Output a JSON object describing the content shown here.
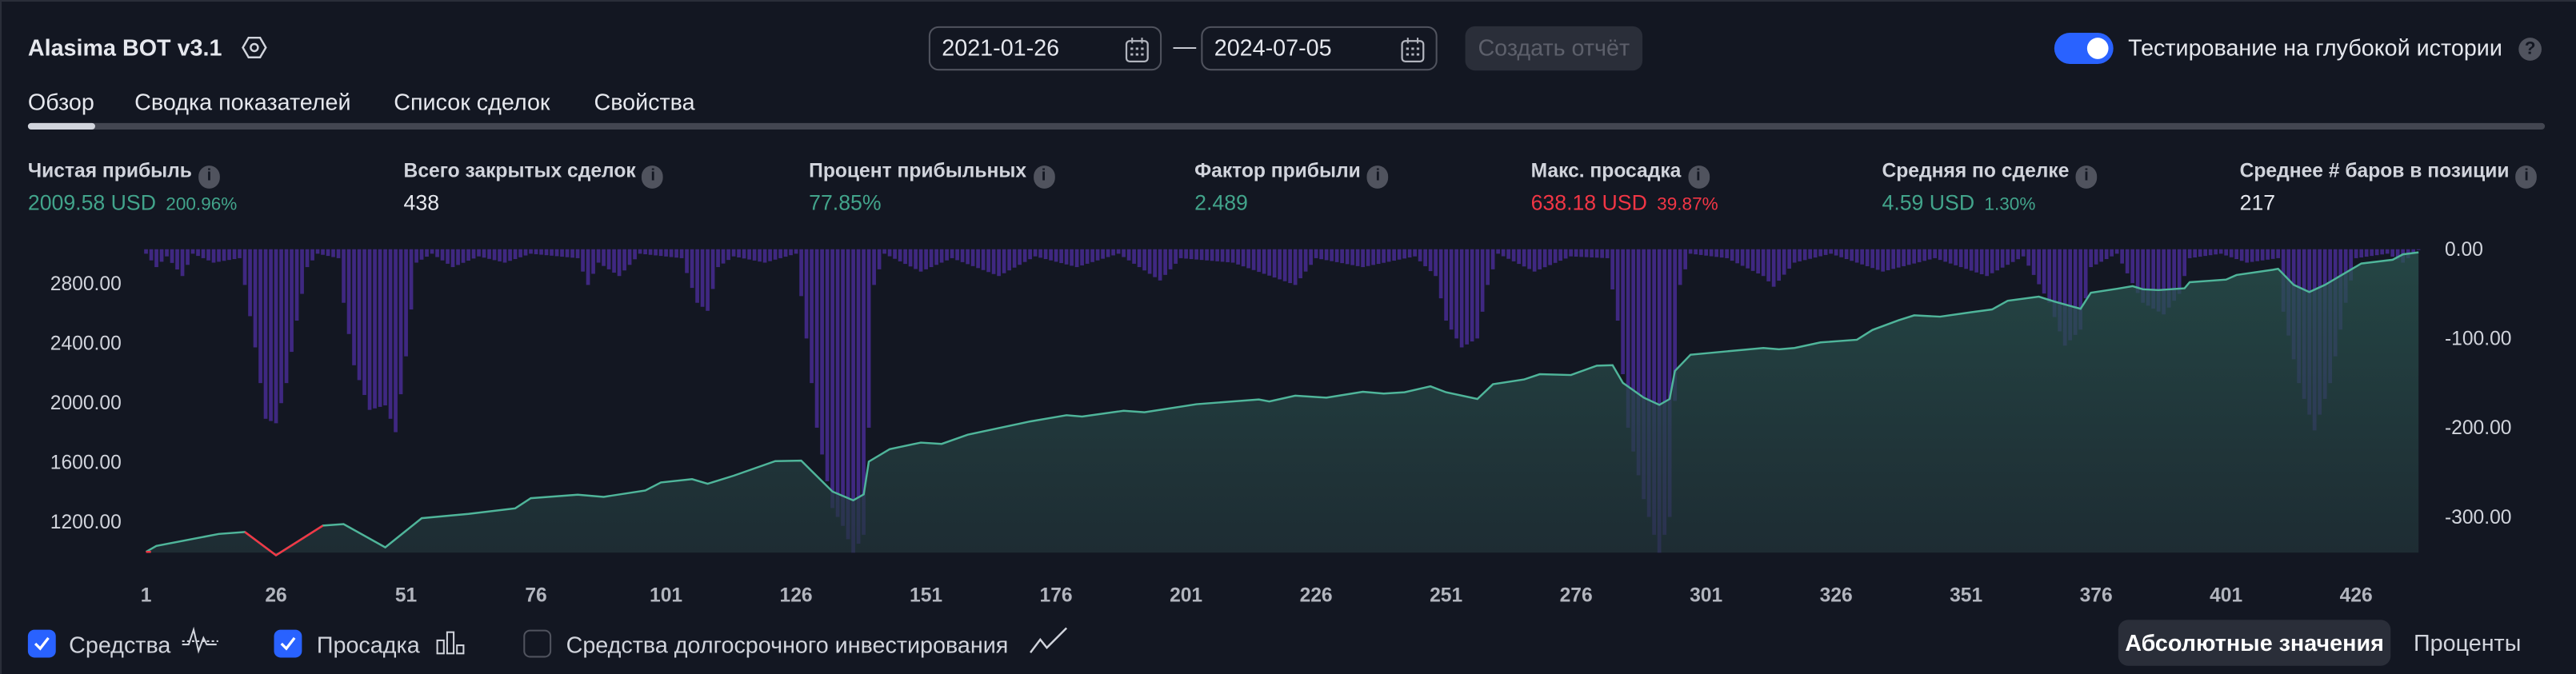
{
  "header": {
    "title": "Alasima BOT v3.1",
    "settings_icon": "hexagon-settings-icon",
    "date_from": "2021-01-26",
    "date_separator": "—",
    "date_to": "2024-07-05",
    "create_report_label": "Создать отчёт",
    "deep_history_toggle": {
      "label": "Тестирование на глубокой истории",
      "on": true,
      "help_icon": "?"
    }
  },
  "tabs": [
    {
      "label": "Обзор",
      "active": true
    },
    {
      "label": "Сводка показателей"
    },
    {
      "label": "Список сделок"
    },
    {
      "label": "Свойства"
    }
  ],
  "info_icon": "i",
  "metrics": [
    {
      "label": "Чистая прибыль",
      "value": "2009.58 USD",
      "pct": "200.96%",
      "color": "#42a48b"
    },
    {
      "label": "Всего закрытых сделок",
      "value": "438"
    },
    {
      "label": "Процент прибыльных",
      "value": "77.85%",
      "color": "#42a48b"
    },
    {
      "label": "Фактор прибыли",
      "value": "2.489",
      "color": "#42a48b"
    },
    {
      "label": "Макс. просадка",
      "value": "638.18 USD",
      "pct": "39.87%",
      "color": "#f23645"
    },
    {
      "label": "Средняя по сделке",
      "value": "4.59 USD",
      "pct": "1.30%",
      "color": "#42a48b"
    },
    {
      "label": "Среднее # баров в позиции",
      "value": "217"
    }
  ],
  "chart_data": {
    "type": "area",
    "x_ticks": [
      "1",
      "26",
      "51",
      "76",
      "101",
      "126",
      "151",
      "176",
      "201",
      "226",
      "251",
      "276",
      "301",
      "326",
      "351",
      "376",
      "401",
      "426"
    ],
    "x_range": [
      1,
      438
    ],
    "left_axis": {
      "ticks": [
        "2800.00",
        "2400.00",
        "2000.00",
        "1600.00",
        "1200.00"
      ],
      "tick_values": [
        2800,
        2400,
        2000,
        1600,
        1200
      ],
      "range": [
        995,
        3030
      ]
    },
    "right_axis": {
      "ticks": [
        "0.00",
        "-100.00",
        "-200.00",
        "-300.00"
      ],
      "tick_values": [
        0,
        -100,
        -200,
        -300
      ],
      "range": [
        -340,
        0
      ]
    },
    "equity_baseline": 1000,
    "series": [
      {
        "name": "Средства",
        "color": "#42a48b",
        "below_baseline_color": "#f23645",
        "points": [
          [
            1,
            1000
          ],
          [
            3,
            1040
          ],
          [
            15,
            1120
          ],
          [
            20,
            1134
          ],
          [
            26,
            977
          ],
          [
            35,
            1176
          ],
          [
            39,
            1186
          ],
          [
            47,
            1030
          ],
          [
            54,
            1226
          ],
          [
            63,
            1255
          ],
          [
            72,
            1292
          ],
          [
            75,
            1360
          ],
          [
            84,
            1383
          ],
          [
            89,
            1369
          ],
          [
            97,
            1412
          ],
          [
            100,
            1466
          ],
          [
            106,
            1488
          ],
          [
            109,
            1457
          ],
          [
            114,
            1511
          ],
          [
            122,
            1609
          ],
          [
            127,
            1612
          ],
          [
            133,
            1404
          ],
          [
            137,
            1346
          ],
          [
            139,
            1386
          ],
          [
            140,
            1605
          ],
          [
            144,
            1689
          ],
          [
            150,
            1733
          ],
          [
            154,
            1724
          ],
          [
            159,
            1786
          ],
          [
            171,
            1875
          ],
          [
            178,
            1917
          ],
          [
            181,
            1908
          ],
          [
            189,
            1946
          ],
          [
            193,
            1937
          ],
          [
            203,
            1991
          ],
          [
            215,
            2022
          ],
          [
            217,
            2009
          ],
          [
            222,
            2048
          ],
          [
            228,
            2035
          ],
          [
            235,
            2074
          ],
          [
            239,
            2062
          ],
          [
            243,
            2071
          ],
          [
            248,
            2110
          ],
          [
            251,
            2071
          ],
          [
            257,
            2026
          ],
          [
            260,
            2125
          ],
          [
            266,
            2157
          ],
          [
            269,
            2192
          ],
          [
            275,
            2186
          ],
          [
            280,
            2249
          ],
          [
            283,
            2252
          ],
          [
            285,
            2134
          ],
          [
            289,
            2035
          ],
          [
            292,
            1986
          ],
          [
            294,
            2026
          ],
          [
            295,
            2214
          ],
          [
            298,
            2323
          ],
          [
            312,
            2368
          ],
          [
            315,
            2359
          ],
          [
            318,
            2368
          ],
          [
            323,
            2405
          ],
          [
            330,
            2423
          ],
          [
            333,
            2489
          ],
          [
            338,
            2554
          ],
          [
            341,
            2587
          ],
          [
            346,
            2578
          ],
          [
            352,
            2608
          ],
          [
            356,
            2626
          ],
          [
            359,
            2685
          ],
          [
            365,
            2712
          ],
          [
            368,
            2679
          ],
          [
            373,
            2631
          ],
          [
            375,
            2739
          ],
          [
            380,
            2765
          ],
          [
            383,
            2782
          ],
          [
            385,
            2762
          ],
          [
            388,
            2756
          ],
          [
            393,
            2768
          ],
          [
            394,
            2809
          ],
          [
            401,
            2827
          ],
          [
            403,
            2857
          ],
          [
            410,
            2893
          ],
          [
            411,
            2899
          ],
          [
            414,
            2791
          ],
          [
            417,
            2743
          ],
          [
            420,
            2791
          ],
          [
            427,
            2934
          ],
          [
            433,
            2960
          ],
          [
            435,
            2996
          ],
          [
            438,
            3009.58
          ]
        ]
      },
      {
        "name": "Просадка",
        "color": "#4b2d9a",
        "axis": "right",
        "points": [
          [
            1,
            -5
          ],
          [
            3,
            -20
          ],
          [
            5,
            -8
          ],
          [
            8,
            -30
          ],
          [
            10,
            -5
          ],
          [
            14,
            -15
          ],
          [
            19,
            -10
          ],
          [
            20,
            -40
          ],
          [
            22,
            -110
          ],
          [
            24,
            -190
          ],
          [
            26,
            -195
          ],
          [
            28,
            -150
          ],
          [
            30,
            -80
          ],
          [
            32,
            -20
          ],
          [
            34,
            -5
          ],
          [
            38,
            -10
          ],
          [
            39,
            -60
          ],
          [
            41,
            -130
          ],
          [
            44,
            -180
          ],
          [
            47,
            -175
          ],
          [
            49,
            -205
          ],
          [
            51,
            -120
          ],
          [
            53,
            -15
          ],
          [
            56,
            -5
          ],
          [
            60,
            -20
          ],
          [
            65,
            -8
          ],
          [
            70,
            -15
          ],
          [
            75,
            -5
          ],
          [
            84,
            -10
          ],
          [
            86,
            -40
          ],
          [
            88,
            -15
          ],
          [
            92,
            -30
          ],
          [
            96,
            -5
          ],
          [
            104,
            -10
          ],
          [
            107,
            -60
          ],
          [
            109,
            -69
          ],
          [
            111,
            -20
          ],
          [
            114,
            -8
          ],
          [
            120,
            -15
          ],
          [
            126,
            -5
          ],
          [
            128,
            -100
          ],
          [
            130,
            -200
          ],
          [
            133,
            -290
          ],
          [
            135,
            -310
          ],
          [
            137,
            -340
          ],
          [
            139,
            -320
          ],
          [
            140,
            -200
          ],
          [
            141,
            -40
          ],
          [
            143,
            -5
          ],
          [
            150,
            -25
          ],
          [
            156,
            -10
          ],
          [
            165,
            -30
          ],
          [
            172,
            -8
          ],
          [
            180,
            -20
          ],
          [
            188,
            -5
          ],
          [
            196,
            -35
          ],
          [
            200,
            -10
          ],
          [
            210,
            -15
          ],
          [
            222,
            -40
          ],
          [
            226,
            -10
          ],
          [
            235,
            -20
          ],
          [
            245,
            -8
          ],
          [
            249,
            -30
          ],
          [
            251,
            -80
          ],
          [
            254,
            -110
          ],
          [
            257,
            -100
          ],
          [
            259,
            -40
          ],
          [
            261,
            -5
          ],
          [
            268,
            -25
          ],
          [
            275,
            -8
          ],
          [
            282,
            -10
          ],
          [
            284,
            -80
          ],
          [
            286,
            -200
          ],
          [
            289,
            -280
          ],
          [
            292,
            -340
          ],
          [
            294,
            -300
          ],
          [
            296,
            -40
          ],
          [
            298,
            -5
          ],
          [
            305,
            -10
          ],
          [
            312,
            -30
          ],
          [
            314,
            -42
          ],
          [
            318,
            -15
          ],
          [
            325,
            -5
          ],
          [
            335,
            -25
          ],
          [
            345,
            -10
          ],
          [
            355,
            -30
          ],
          [
            362,
            -8
          ],
          [
            367,
            -60
          ],
          [
            370,
            -108
          ],
          [
            373,
            -90
          ],
          [
            375,
            -20
          ],
          [
            380,
            -5
          ],
          [
            385,
            -60
          ],
          [
            389,
            -73
          ],
          [
            392,
            -50
          ],
          [
            394,
            -10
          ],
          [
            400,
            -5
          ],
          [
            405,
            -15
          ],
          [
            411,
            -10
          ],
          [
            412,
            -70
          ],
          [
            415,
            -150
          ],
          [
            418,
            -203
          ],
          [
            421,
            -150
          ],
          [
            424,
            -60
          ],
          [
            426,
            -10
          ],
          [
            432,
            -5
          ],
          [
            435,
            -15
          ],
          [
            438,
            0
          ]
        ]
      }
    ],
    "grid": false
  },
  "legend": {
    "items": [
      {
        "label": "Средства",
        "checked": true,
        "icon": "equity-line-icon"
      },
      {
        "label": "Просадка",
        "checked": true,
        "icon": "drawdown-bars-icon"
      },
      {
        "label": "Средства долгосрочного инвестирования",
        "checked": false,
        "icon": "buy-hold-line-icon"
      }
    ],
    "modes": [
      {
        "label": "Абсолютные значения",
        "active": true
      },
      {
        "label": "Проценты",
        "active": false
      }
    ]
  }
}
